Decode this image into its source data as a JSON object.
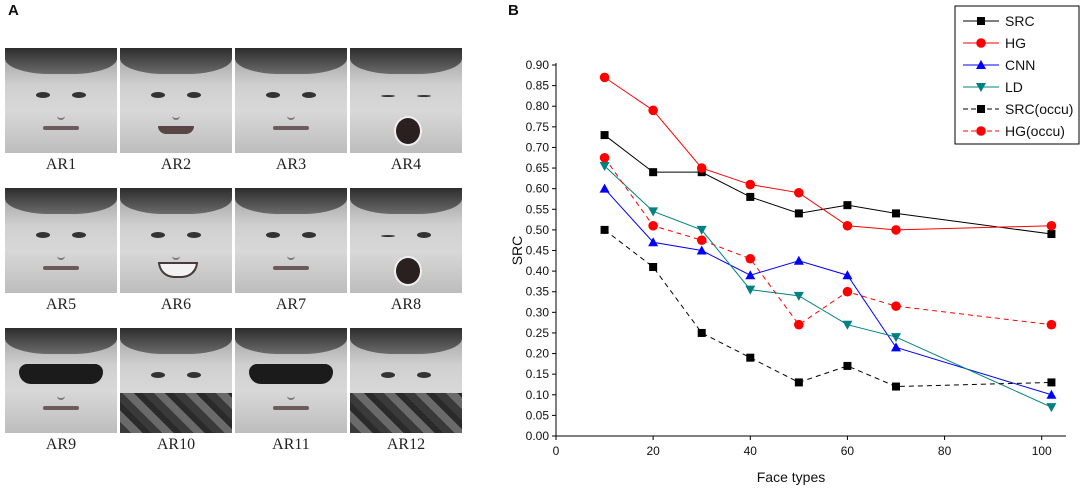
{
  "panels": {
    "a_label": "A",
    "b_label": "B"
  },
  "faces": [
    {
      "label": "AR1",
      "variant": "neutral"
    },
    {
      "label": "AR2",
      "variant": "smile"
    },
    {
      "label": "AR3",
      "variant": "neutral"
    },
    {
      "label": "AR4",
      "variant": "scream"
    },
    {
      "label": "AR5",
      "variant": "neutral"
    },
    {
      "label": "AR6",
      "variant": "teeth"
    },
    {
      "label": "AR7",
      "variant": "neutral"
    },
    {
      "label": "AR8",
      "variant": "wink-scream"
    },
    {
      "label": "AR9",
      "variant": "sunglasses"
    },
    {
      "label": "AR10",
      "variant": "scarf"
    },
    {
      "label": "AR11",
      "variant": "sunglasses"
    },
    {
      "label": "AR12",
      "variant": "scarf"
    }
  ],
  "chart_data": {
    "type": "line",
    "title": "",
    "xlabel": "Face types",
    "ylabel": "SRC",
    "xlim": [
      0,
      105
    ],
    "ylim": [
      0,
      0.9
    ],
    "xticks": [
      0,
      20,
      40,
      60,
      80,
      100
    ],
    "yticks": [
      0.0,
      0.05,
      0.1,
      0.15,
      0.2,
      0.25,
      0.3,
      0.35,
      0.4,
      0.45,
      0.5,
      0.55,
      0.6,
      0.65,
      0.7,
      0.75,
      0.8,
      0.85,
      0.9
    ],
    "legend_position": "top-right",
    "series": [
      {
        "name": "SRC",
        "color": "#000000",
        "marker": "square",
        "dash": "solid",
        "x": [
          10,
          20,
          30,
          40,
          50,
          60,
          70,
          102
        ],
        "y": [
          0.73,
          0.64,
          0.64,
          0.58,
          0.54,
          0.56,
          0.54,
          0.49
        ]
      },
      {
        "name": "HG",
        "color": "#ff0000",
        "marker": "circle",
        "dash": "solid",
        "x": [
          10,
          20,
          30,
          40,
          50,
          60,
          70,
          102
        ],
        "y": [
          0.87,
          0.79,
          0.65,
          0.61,
          0.59,
          0.51,
          0.5,
          0.51
        ]
      },
      {
        "name": "CNN",
        "color": "#0000ff",
        "marker": "triangle-up",
        "dash": "solid",
        "x": [
          10,
          20,
          30,
          40,
          50,
          60,
          70,
          102
        ],
        "y": [
          0.6,
          0.47,
          0.45,
          0.39,
          0.425,
          0.39,
          0.215,
          0.1
        ]
      },
      {
        "name": "LD",
        "color": "#008080",
        "marker": "triangle-down",
        "dash": "solid",
        "x": [
          10,
          20,
          30,
          40,
          50,
          60,
          70,
          102
        ],
        "y": [
          0.655,
          0.545,
          0.5,
          0.355,
          0.34,
          0.27,
          0.24,
          0.07
        ]
      },
      {
        "name": "SRC(occu)",
        "color": "#000000",
        "marker": "square",
        "dash": "dashed",
        "x": [
          10,
          20,
          30,
          40,
          50,
          60,
          70,
          102
        ],
        "y": [
          0.5,
          0.41,
          0.25,
          0.19,
          0.13,
          0.17,
          0.12,
          0.13
        ]
      },
      {
        "name": "HG(occu)",
        "color": "#ff0000",
        "marker": "circle",
        "dash": "dashed",
        "x": [
          10,
          20,
          30,
          40,
          50,
          60,
          70,
          102
        ],
        "y": [
          0.675,
          0.51,
          0.475,
          0.43,
          0.27,
          0.35,
          0.315,
          0.27
        ]
      }
    ]
  }
}
